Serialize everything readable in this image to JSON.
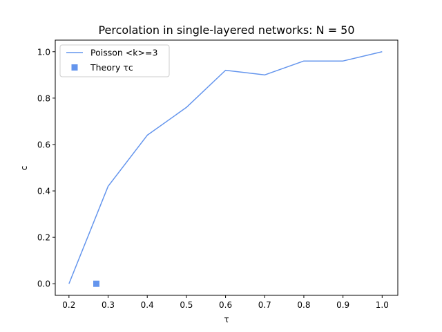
{
  "chart_data": {
    "type": "line",
    "title": "Percolation in single-layered networks: N = 50",
    "xlabel": "τ",
    "ylabel": "c",
    "xlim": [
      0.165,
      1.04
    ],
    "ylim": [
      -0.05,
      1.05
    ],
    "xticks": [
      "0.2",
      "0.3",
      "0.4",
      "0.5",
      "0.6",
      "0.7",
      "0.8",
      "0.9",
      "1.0"
    ],
    "yticks": [
      "0.0",
      "0.2",
      "0.4",
      "0.6",
      "0.8",
      "1.0"
    ],
    "grid": false,
    "legend_position": "upper-left",
    "series": [
      {
        "name": "Poisson <k>=3",
        "kind": "line",
        "color": "#6495ed",
        "x": [
          0.2,
          0.3,
          0.4,
          0.5,
          0.6,
          0.7,
          0.8,
          0.9,
          1.0
        ],
        "y": [
          0.0,
          0.42,
          0.64,
          0.76,
          0.92,
          0.9,
          0.96,
          0.96,
          1.0
        ]
      },
      {
        "name": "Theory τc",
        "kind": "marker",
        "marker": "square",
        "color": "#6495ed",
        "x": [
          0.27
        ],
        "y": [
          0.0
        ]
      }
    ]
  }
}
